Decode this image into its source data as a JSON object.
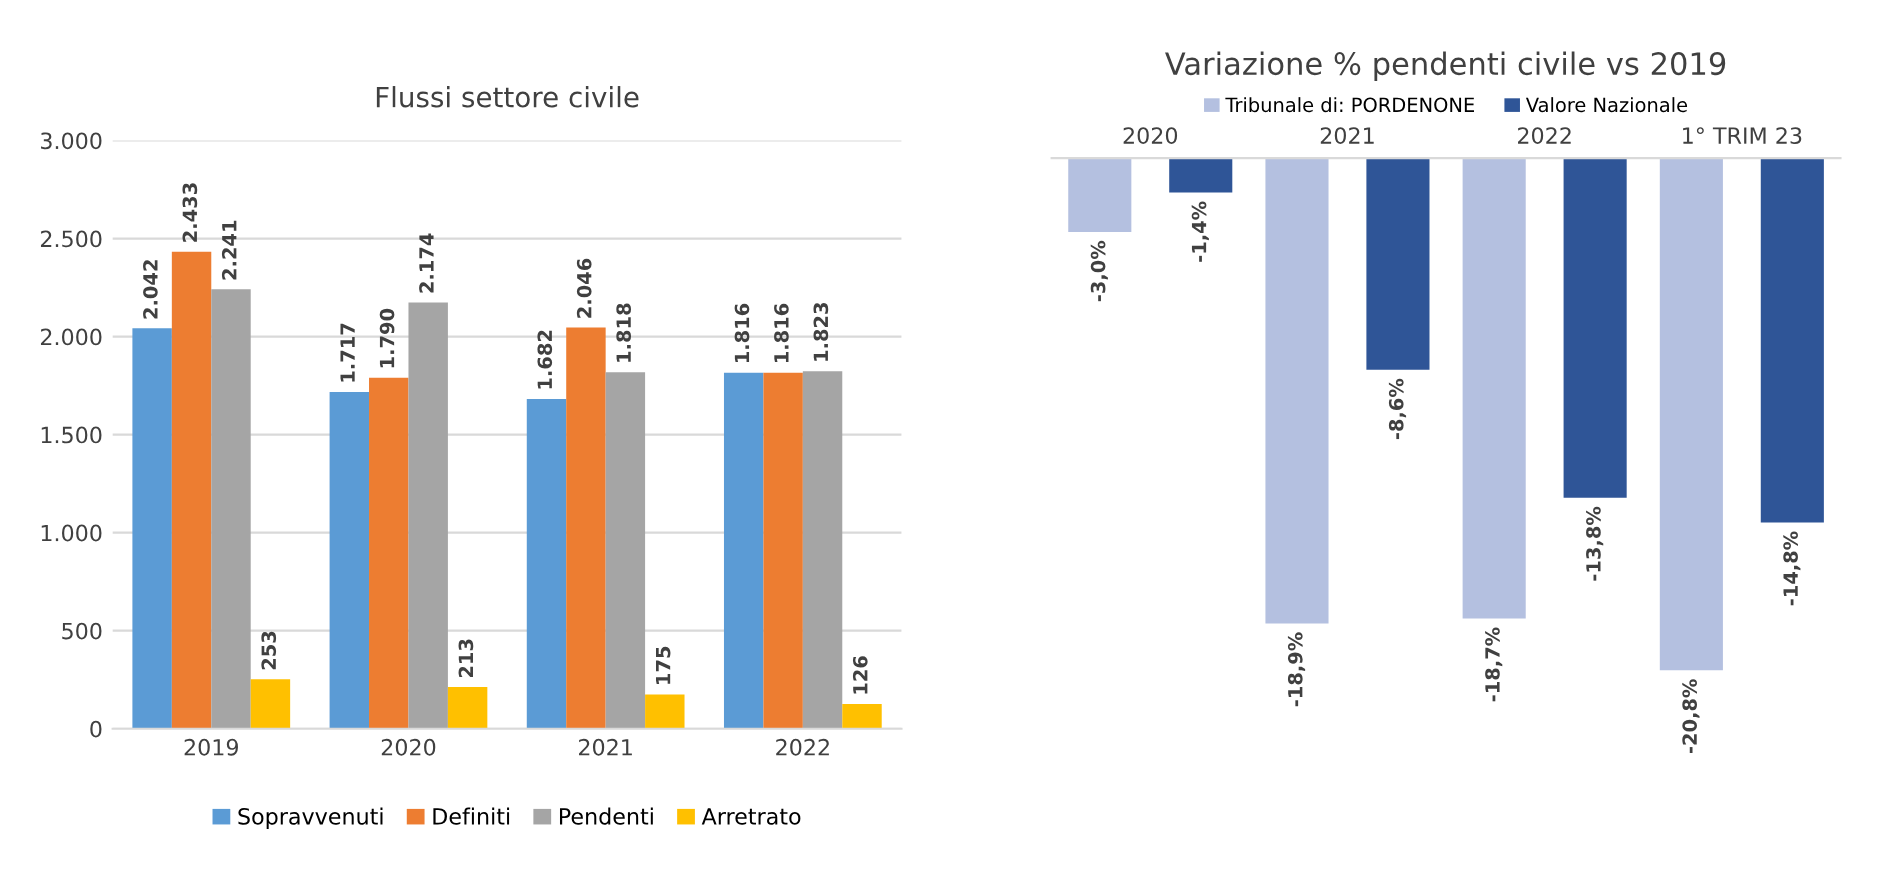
{
  "chart_data": [
    {
      "type": "bar",
      "title": "Flussi settore civile",
      "categories": [
        "2019",
        "2020",
        "2021",
        "2022"
      ],
      "series": [
        {
          "name": "Sopravvenuti",
          "color": "#5b9bd5",
          "values": [
            2042,
            1717,
            1682,
            1816
          ],
          "value_labels": [
            "2.042",
            "1.717",
            "1.682",
            "1.816"
          ]
        },
        {
          "name": "Definiti",
          "color": "#ed7d31",
          "values": [
            2433,
            1790,
            2046,
            1816
          ],
          "value_labels": [
            "2.433",
            "1.790",
            "2.046",
            "1.816"
          ]
        },
        {
          "name": "Pendenti",
          "color": "#a5a5a5",
          "values": [
            2241,
            2174,
            1818,
            1823
          ],
          "value_labels": [
            "2.241",
            "2.174",
            "1.818",
            "1.823"
          ]
        },
        {
          "name": "Arretrato",
          "color": "#ffc000",
          "values": [
            253,
            213,
            175,
            126
          ],
          "value_labels": [
            "253",
            "213",
            "175",
            "126"
          ]
        }
      ],
      "ylim": [
        0,
        3000
      ],
      "yticks": [
        {
          "value": 0,
          "label": "0"
        },
        {
          "value": 500,
          "label": "500"
        },
        {
          "value": 1000,
          "label": "1.000"
        },
        {
          "value": 1500,
          "label": "1.500"
        },
        {
          "value": 2000,
          "label": "2.000"
        },
        {
          "value": 2500,
          "label": "2.500"
        },
        {
          "value": 3000,
          "label": "3.000"
        }
      ],
      "grid": "y",
      "legend": "bottom"
    },
    {
      "type": "bar",
      "title": "Variazione % pendenti civile vs 2019",
      "categories": [
        "2020",
        "2021",
        "2022",
        "1° TRIM 23"
      ],
      "series": [
        {
          "name": "Tribunale di: PORDENONE",
          "color": "#b4c0e0",
          "values": [
            -3.0,
            -18.9,
            -18.7,
            -20.8
          ],
          "value_labels": [
            "-3,0%",
            "-18,9%",
            "-18,7%",
            "-20,8%"
          ]
        },
        {
          "name": "Valore Nazionale",
          "color": "#2f5597",
          "values": [
            -1.4,
            -8.6,
            -13.8,
            -14.8
          ],
          "value_labels": [
            "-1,4%",
            "-8,6%",
            "-13,8%",
            "-14,8%"
          ]
        }
      ],
      "tick_labels": "x",
      "legend": "top"
    }
  ]
}
